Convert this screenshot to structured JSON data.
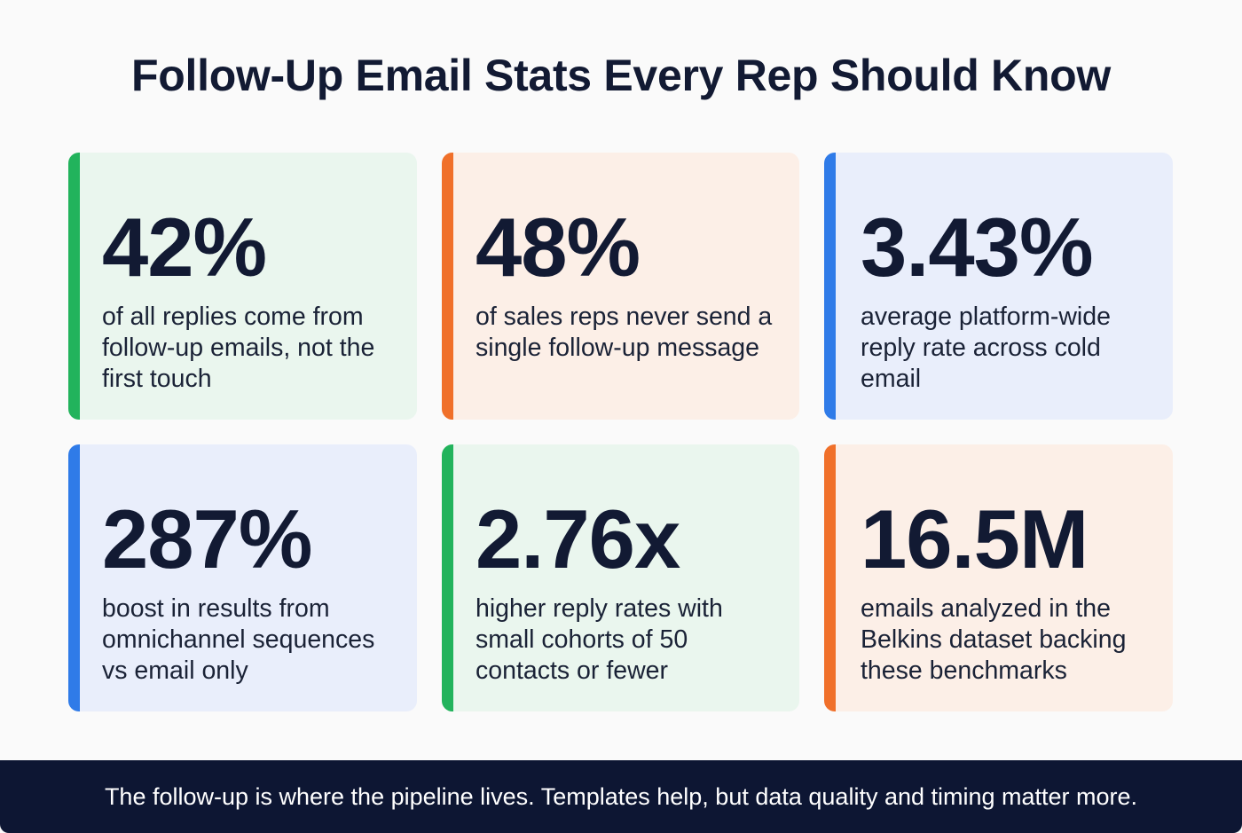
{
  "title": "Follow-Up Email Stats Every Rep Should Know",
  "colors": {
    "green": "#22b35c",
    "orange": "#f0702a",
    "blue": "#2f7be8",
    "navy": "#0d1633"
  },
  "cards": [
    {
      "value": "42%",
      "description": "of all replies come from follow-up emails, not the first touch",
      "accent": "green"
    },
    {
      "value": "48%",
      "description": "of sales reps never send a single follow-up message",
      "accent": "orange"
    },
    {
      "value": "3.43%",
      "description": "average platform-wide reply rate across cold email",
      "accent": "blue"
    },
    {
      "value": "287%",
      "description": "boost in results from omnichannel sequences vs email only",
      "accent": "blue"
    },
    {
      "value": "2.76x",
      "description": "higher reply rates with small cohorts of 50 contacts or fewer",
      "accent": "green"
    },
    {
      "value": "16.5M",
      "description": "emails analyzed in the Belkins dataset backing these benchmarks",
      "accent": "orange"
    }
  ],
  "footer": {
    "text": "The follow-up is where the pipeline lives. Templates help, but data quality and timing matter more."
  }
}
